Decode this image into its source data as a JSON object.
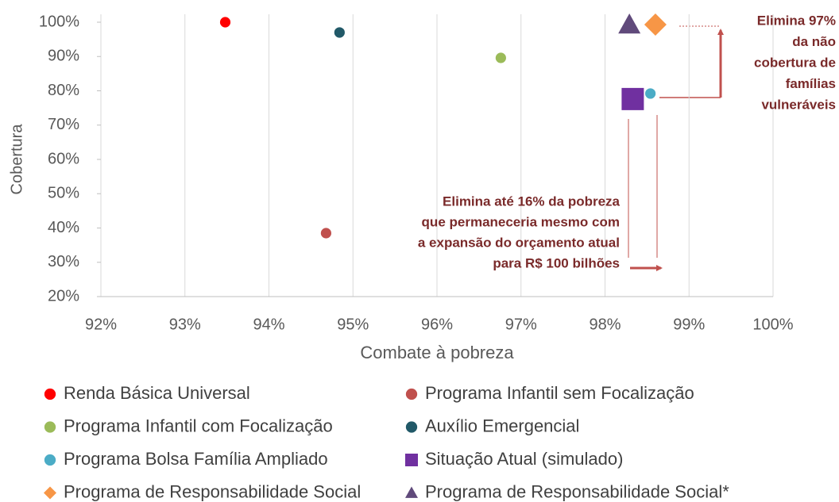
{
  "chart_data": {
    "type": "scatter",
    "xlabel": "Combate à pobreza",
    "ylabel": "Cobertura",
    "xlim": [
      92,
      100
    ],
    "ylim": [
      20,
      100
    ],
    "xticks": [
      {
        "value": 92,
        "label": "92%"
      },
      {
        "value": 93,
        "label": "93%"
      },
      {
        "value": 94,
        "label": "94%"
      },
      {
        "value": 95,
        "label": "95%"
      },
      {
        "value": 96,
        "label": "96%"
      },
      {
        "value": 97,
        "label": "97%"
      },
      {
        "value": 98,
        "label": "98%"
      },
      {
        "value": 99,
        "label": "99%"
      },
      {
        "value": 100,
        "label": "100%"
      }
    ],
    "yticks": [
      {
        "value": 20,
        "label": "20%"
      },
      {
        "value": 30,
        "label": "30%"
      },
      {
        "value": 40,
        "label": "40%"
      },
      {
        "value": 50,
        "label": "50%"
      },
      {
        "value": 60,
        "label": "60%"
      },
      {
        "value": 70,
        "label": "70%"
      },
      {
        "value": 80,
        "label": "80%"
      },
      {
        "value": 90,
        "label": "90%"
      },
      {
        "value": 100,
        "label": "100%"
      }
    ],
    "grid": true,
    "legend": "bottom",
    "series": [
      {
        "name": "Renda Básica Universal",
        "color": "#ff0000",
        "marker": "circle",
        "x": [
          93.48
        ],
        "values": [
          100
        ]
      },
      {
        "name": "Programa Infantil sem Focalização",
        "color": "#c0504d",
        "marker": "circle",
        "x": [
          94.68
        ],
        "values": [
          38.5
        ]
      },
      {
        "name": "Programa Infantil com Focalização",
        "color": "#9bbb59",
        "marker": "circle",
        "x": [
          96.76
        ],
        "values": [
          89.6
        ]
      },
      {
        "name": "Auxílio Emergencial",
        "color": "#215968",
        "marker": "circle",
        "x": [
          94.84
        ],
        "values": [
          97
        ]
      },
      {
        "name": "Programa Bolsa Família Ampliado",
        "color": "#4bacc6",
        "marker": "circle",
        "x": [
          98.54
        ],
        "values": [
          79.2
        ]
      },
      {
        "name": "Situação Atual (simulado)",
        "color": "#7030a0",
        "marker": "square",
        "x": [
          98.33
        ],
        "values": [
          77.6
        ]
      },
      {
        "name": "Programa de Responsabilidade Social",
        "color": "#f79646",
        "marker": "diamond",
        "x": [
          98.6
        ],
        "values": [
          99.3
        ]
      },
      {
        "name": "Programa de Responsabilidade Social*",
        "color": "#604a7b",
        "marker": "triangle",
        "x": [
          98.29
        ],
        "values": [
          99.3
        ]
      }
    ],
    "annotations": [
      {
        "lines": [
          "Elimina 97%",
          "da não",
          "cobertura de",
          "famílias",
          "vulneráveis"
        ]
      },
      {
        "lines": [
          "Elimina até 16% da pobreza",
          "que permaneceria mesmo com",
          "a expansão do orçamento atual",
          "para R$ 100 bilhões"
        ]
      }
    ]
  }
}
